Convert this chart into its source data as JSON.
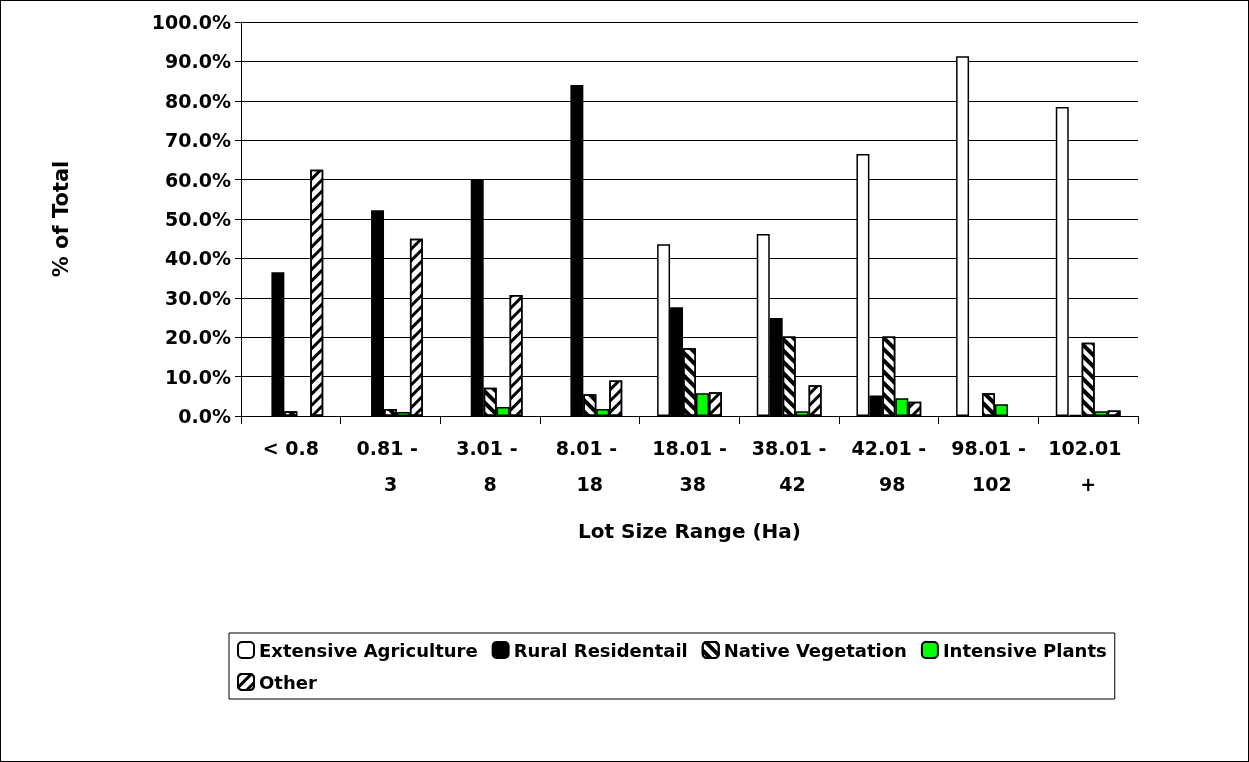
{
  "chart_data": {
    "type": "bar",
    "xlabel": "Lot Size Range (Ha)",
    "ylabel": "% of Total",
    "categories": [
      "< 0.8",
      "0.81 - 3",
      "3.01 - 8",
      "8.01 - 18",
      "18.01 - 38",
      "38.01 - 42",
      "42.01 - 98",
      "98.01 - 102",
      "102.01 +"
    ],
    "series": [
      {
        "name": "Extensive Agriculture",
        "color": "#ffffff",
        "values": [
          0,
          0,
          0,
          0,
          43.6,
          46.2,
          66.5,
          91.3,
          78.4
        ]
      },
      {
        "name": "Rural Residentail",
        "color": "#000000",
        "values": [
          36.5,
          52.2,
          60.0,
          84.0,
          27.6,
          24.9,
          5.2,
          0,
          0.3
        ]
      },
      {
        "name": "Native Vegetation",
        "color": "#ffffff",
        "values": [
          1.2,
          1.8,
          7.2,
          5.5,
          17.2,
          20.2,
          20.2,
          5.8,
          18.6
        ]
      },
      {
        "name": "Intensive Plants",
        "color": "#00ff00",
        "values": [
          0,
          1.0,
          2.3,
          1.8,
          5.8,
          1.2,
          4.5,
          3.0,
          1.2
        ]
      },
      {
        "name": "Other",
        "color": "#ffffff",
        "values": [
          62.5,
          45.0,
          30.7,
          9.0,
          6.0,
          7.8,
          3.6,
          0,
          1.4
        ]
      }
    ],
    "ylim": [
      0,
      100
    ],
    "yticks": [
      {
        "value": 0,
        "label": "0.0%"
      },
      {
        "value": 10,
        "label": "10.0%"
      },
      {
        "value": 20,
        "label": "20.0%"
      },
      {
        "value": 30,
        "label": "30.0%"
      },
      {
        "value": 40,
        "label": "40.0%"
      },
      {
        "value": 50,
        "label": "50.0%"
      },
      {
        "value": 60,
        "label": "60.0%"
      },
      {
        "value": 70,
        "label": "70.0%"
      },
      {
        "value": 80,
        "label": "80.0%"
      },
      {
        "value": 90,
        "label": "90.0%"
      },
      {
        "value": 100,
        "label": "100.0%"
      }
    ],
    "grid": "y",
    "legend": "bottom"
  }
}
